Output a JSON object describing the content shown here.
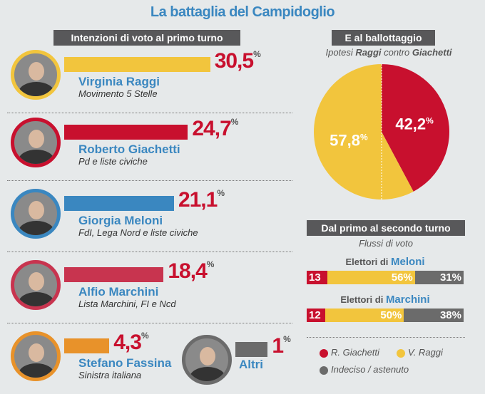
{
  "title": "La battaglia del Campidoglio",
  "left_header": "Intenzioni di voto al primo turno",
  "pct_sign": "%",
  "colors": {
    "raggi": "#f2c53d",
    "giachetti": "#c8102e",
    "meloni": "#3a87c0",
    "marchini": "#c8344f",
    "fassina": "#e8922a",
    "altri": "#6b6b6b"
  },
  "chart_data": [
    {
      "type": "bar",
      "title": "Intenzioni di voto al primo turno",
      "categories": [
        "Virginia Raggi",
        "Roberto Giachetti",
        "Giorgia Meloni",
        "Alfio Marchini",
        "Stefano Fassina",
        "Altri"
      ],
      "parties": [
        "Movimento 5 Stelle",
        "Pd e liste civiche",
        "FdI, Lega Nord e liste civiche",
        "Lista Marchini, FI e Ncd",
        "Sinistra italiana",
        ""
      ],
      "labels": [
        "30,5",
        "24,7",
        "21,1",
        "18,4",
        "4,3",
        "1"
      ],
      "values": [
        30.5,
        24.7,
        21.1,
        18.4,
        4.3,
        1
      ]
    },
    {
      "type": "pie",
      "title": "E al ballottaggio",
      "subtitle_parts": [
        "Ipotesi ",
        "Raggi",
        " contro ",
        "Giachetti"
      ],
      "slices": [
        {
          "name": "R. Giachetti",
          "value": 42.2,
          "label": "42,2"
        },
        {
          "name": "V. Raggi",
          "value": 57.8,
          "label": "57,8"
        }
      ]
    },
    {
      "type": "bar",
      "stacked": true,
      "title": "Dal primo al secondo turno",
      "subtitle": "Flussi di voto",
      "prefix": "Elettori di",
      "groups": [
        {
          "name": "Meloni",
          "values": [
            13,
            56,
            31
          ],
          "labels": [
            "13",
            "56%",
            "31%"
          ]
        },
        {
          "name": "Marchini",
          "values": [
            12,
            50,
            38
          ],
          "labels": [
            "12",
            "50%",
            "38%"
          ]
        }
      ],
      "legend": [
        "R. Giachetti",
        "V. Raggi",
        "Indeciso / astenuto"
      ]
    }
  ]
}
